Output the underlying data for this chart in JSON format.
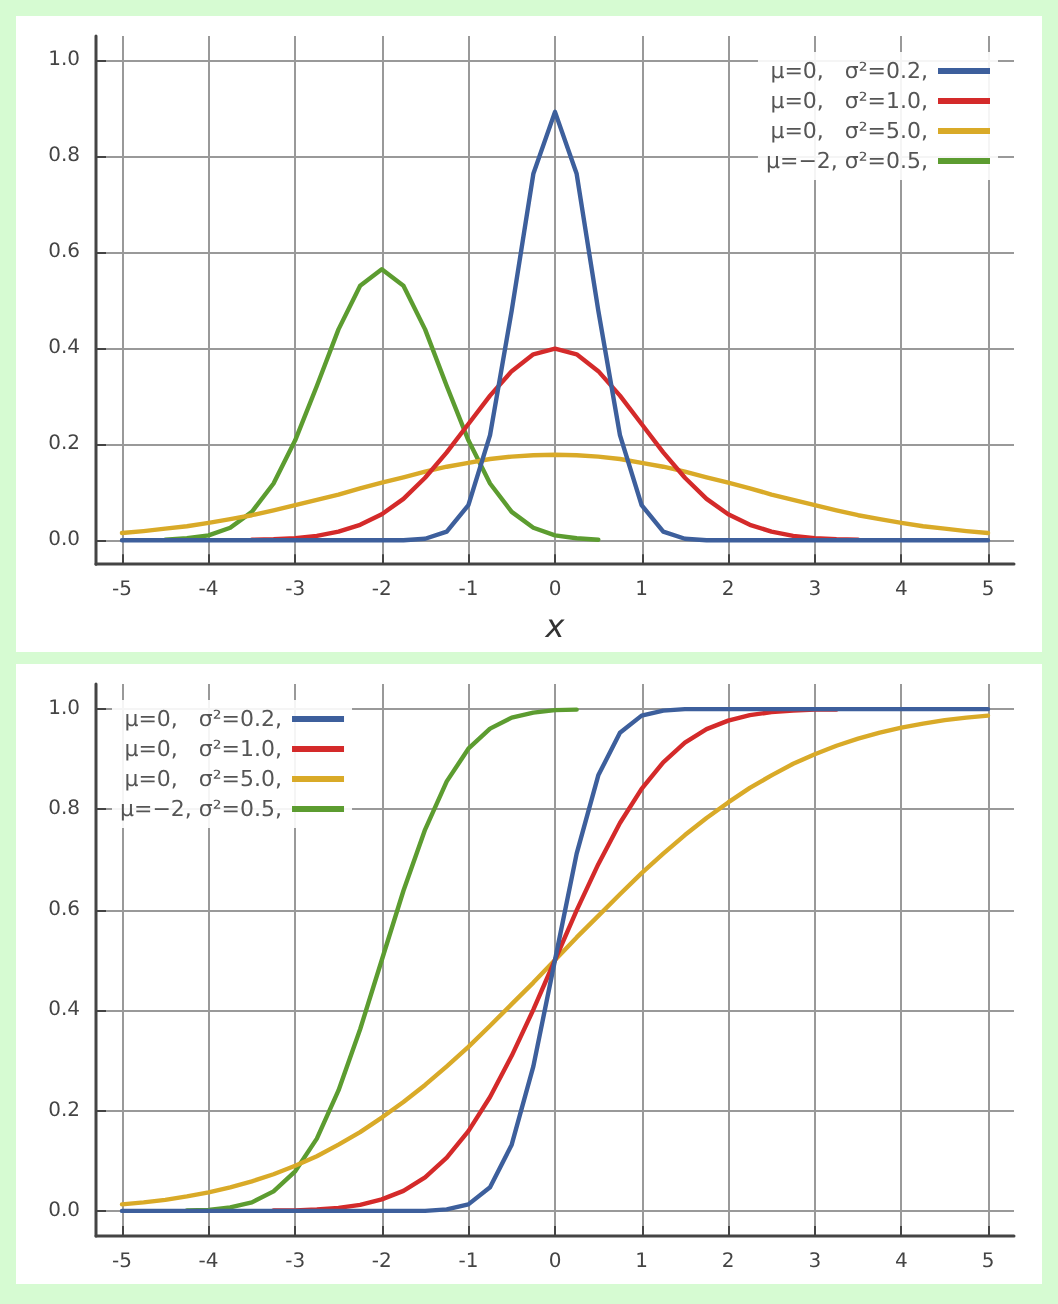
{
  "chart_data": [
    {
      "type": "line",
      "xlabel": "x",
      "x": [
        -5,
        -4.75,
        -4.5,
        -4.25,
        -4,
        -3.75,
        -3.5,
        -3.25,
        -3,
        -2.75,
        -2.5,
        -2.25,
        -2,
        -1.75,
        -1.5,
        -1.25,
        -1,
        -0.75,
        -0.5,
        -0.25,
        0,
        0.25,
        0.5,
        0.75,
        1,
        1.25,
        1.5,
        1.75,
        2,
        2.25,
        2.5,
        2.75,
        3,
        3.25,
        3.5,
        3.75,
        4,
        4.25,
        4.5,
        4.75,
        5
      ],
      "xlim": [
        -5.3,
        5.3
      ],
      "xticks": [
        -5,
        -4,
        -3,
        -2,
        -1,
        0,
        1,
        2,
        3,
        4,
        5
      ],
      "ylim": [
        -0.05,
        1.05
      ],
      "yticks": [
        {
          "value": 0,
          "label": "0.0"
        },
        {
          "value": 0.2,
          "label": "0.2"
        },
        {
          "value": 0.4,
          "label": "0.4"
        },
        {
          "value": 0.6,
          "label": "0.6"
        },
        {
          "value": 0.8,
          "label": "0.8"
        },
        {
          "value": 1,
          "label": "1.0"
        }
      ],
      "grid": true,
      "legend": "top right",
      "marker": "none",
      "line_style": "solid",
      "series": [
        {
          "name": "μ=0,   σ²=0.2,",
          "color": "#3d5f9c",
          "values": [
            0,
            0,
            0,
            0,
            0,
            0,
            0,
            0,
            0,
            0,
            0,
            0,
            0,
            0,
            0.003,
            0.018,
            0.073,
            0.219,
            0.478,
            0.763,
            0.892,
            0.763,
            0.478,
            0.219,
            0.073,
            0.018,
            0.003,
            0,
            0,
            0,
            0,
            0,
            0,
            0,
            0,
            0,
            0,
            0,
            0,
            0,
            0
          ]
        },
        {
          "name": "μ=0,   σ²=1.0,",
          "color": "#d42a2a",
          "values": [
            null,
            null,
            null,
            null,
            null,
            null,
            0.001,
            0.002,
            0.004,
            0.009,
            0.018,
            0.032,
            0.054,
            0.086,
            0.13,
            0.183,
            0.242,
            0.301,
            0.352,
            0.387,
            0.399,
            0.387,
            0.352,
            0.301,
            0.242,
            0.183,
            0.13,
            0.086,
            0.054,
            0.032,
            0.018,
            0.009,
            0.004,
            0.002,
            0.001,
            null,
            null,
            null,
            null,
            null,
            null
          ]
        },
        {
          "name": "μ=0,   σ²=5.0,",
          "color": "#d9aa28",
          "values": [
            0.015,
            0.019,
            0.024,
            0.029,
            0.036,
            0.044,
            0.052,
            0.062,
            0.073,
            0.084,
            0.095,
            0.108,
            0.12,
            0.131,
            0.143,
            0.153,
            0.161,
            0.169,
            0.174,
            0.177,
            0.178,
            0.177,
            0.174,
            0.169,
            0.161,
            0.153,
            0.143,
            0.131,
            0.12,
            0.108,
            0.095,
            0.084,
            0.073,
            0.062,
            0.052,
            0.044,
            0.036,
            0.029,
            0.024,
            0.019,
            0.015
          ]
        },
        {
          "name": "μ=−2, σ²=0.5,",
          "color": "#5c9c30",
          "values": [
            null,
            null,
            0.001,
            0.004,
            0.01,
            0.026,
            0.059,
            0.118,
            0.208,
            0.321,
            0.439,
            0.53,
            0.564,
            0.53,
            0.439,
            0.321,
            0.208,
            0.118,
            0.059,
            0.026,
            0.01,
            0.004,
            0.001,
            null,
            null,
            null,
            null,
            null,
            null,
            null,
            null,
            null,
            null,
            null,
            null,
            null,
            null,
            null,
            null,
            null,
            null
          ]
        }
      ]
    },
    {
      "type": "line",
      "x": [
        -5,
        -4.75,
        -4.5,
        -4.25,
        -4,
        -3.75,
        -3.5,
        -3.25,
        -3,
        -2.75,
        -2.5,
        -2.25,
        -2,
        -1.75,
        -1.5,
        -1.25,
        -1,
        -0.75,
        -0.5,
        -0.25,
        0,
        0.25,
        0.5,
        0.75,
        1,
        1.25,
        1.5,
        1.75,
        2,
        2.25,
        2.5,
        2.75,
        3,
        3.25,
        3.5,
        3.75,
        4,
        4.25,
        4.5,
        4.75,
        5
      ],
      "xlim": [
        -5.3,
        5.3
      ],
      "xticks": [
        -5,
        -4,
        -3,
        -2,
        -1,
        0,
        1,
        2,
        3,
        4,
        5
      ],
      "ylim": [
        -0.05,
        1.05
      ],
      "yticks": [
        {
          "value": 0,
          "label": "0.0"
        },
        {
          "value": 0.2,
          "label": "0.2"
        },
        {
          "value": 0.4,
          "label": "0.4"
        },
        {
          "value": 0.6,
          "label": "0.6"
        },
        {
          "value": 0.8,
          "label": "0.8"
        },
        {
          "value": 1,
          "label": "1.0"
        }
      ],
      "grid": true,
      "legend": "top left",
      "marker": "none",
      "line_style": "solid",
      "series": [
        {
          "name": "μ=0,   σ²=0.2,",
          "color": "#3d5f9c",
          "values": [
            0,
            0,
            0,
            0,
            0,
            0,
            0,
            0,
            0,
            0,
            0,
            0,
            0,
            0,
            0,
            0.003,
            0.013,
            0.047,
            0.132,
            0.288,
            0.5,
            0.712,
            0.868,
            0.953,
            0.987,
            0.997,
            1,
            1,
            1,
            1,
            1,
            1,
            1,
            1,
            1,
            1,
            1,
            1,
            1,
            1,
            1
          ]
        },
        {
          "name": "μ=0,   σ²=1.0,",
          "color": "#d42a2a",
          "values": [
            null,
            null,
            null,
            null,
            null,
            null,
            null,
            0.001,
            0.001,
            0.003,
            0.006,
            0.012,
            0.023,
            0.04,
            0.067,
            0.106,
            0.159,
            0.227,
            0.309,
            0.401,
            0.5,
            0.599,
            0.691,
            0.773,
            0.841,
            0.894,
            0.933,
            0.96,
            0.977,
            0.988,
            0.994,
            0.997,
            0.999,
            0.999,
            null,
            null,
            null,
            null,
            null,
            null,
            null
          ]
        },
        {
          "name": "μ=0,   σ²=5.0,",
          "color": "#d9aa28",
          "values": [
            0.013,
            0.017,
            0.022,
            0.029,
            0.037,
            0.047,
            0.059,
            0.073,
            0.09,
            0.109,
            0.132,
            0.157,
            0.186,
            0.217,
            0.251,
            0.288,
            0.327,
            0.369,
            0.412,
            0.455,
            0.5,
            0.545,
            0.588,
            0.631,
            0.673,
            0.712,
            0.749,
            0.783,
            0.814,
            0.843,
            0.868,
            0.891,
            0.91,
            0.927,
            0.941,
            0.953,
            0.963,
            0.971,
            0.978,
            0.983,
            0.987
          ]
        },
        {
          "name": "μ=−2, σ²=0.5,",
          "color": "#5c9c30",
          "values": [
            null,
            null,
            null,
            0.001,
            0.002,
            0.007,
            0.017,
            0.039,
            0.079,
            0.144,
            0.24,
            0.362,
            0.5,
            0.638,
            0.76,
            0.856,
            0.921,
            0.961,
            0.983,
            0.993,
            0.998,
            0.999,
            null,
            null,
            null,
            null,
            null,
            null,
            null,
            null,
            null,
            null,
            null,
            null,
            null,
            null,
            null,
            null,
            null,
            null,
            null
          ]
        }
      ]
    }
  ]
}
